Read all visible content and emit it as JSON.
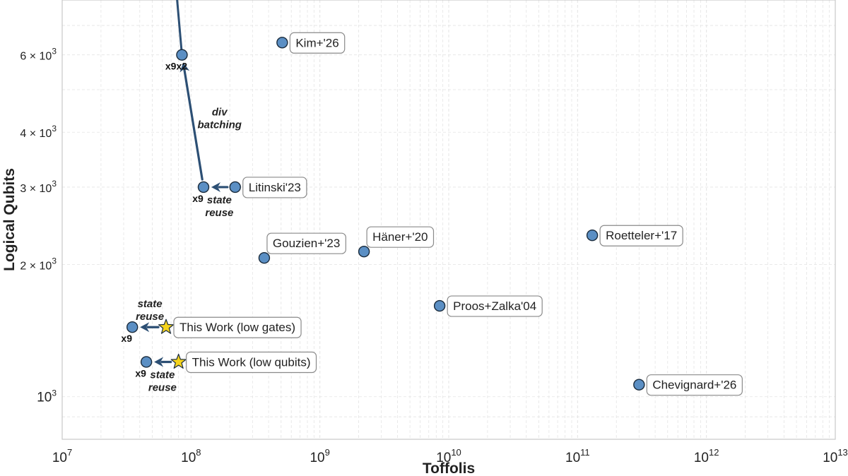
{
  "chart_data": {
    "type": "scatter",
    "xlabel": "Toffolis",
    "ylabel": "Logical Qubits",
    "xscale": "log",
    "yscale": "log",
    "xlim": [
      10000000,
      10000000000000
    ],
    "ylim": [
      800,
      8000
    ],
    "grid": true,
    "x_ticks": [
      {
        "value": 10000000,
        "base": "10",
        "exp": "7"
      },
      {
        "value": 100000000,
        "base": "10",
        "exp": "8"
      },
      {
        "value": 1000000000,
        "base": "10",
        "exp": "9"
      },
      {
        "value": 10000000000,
        "base": "10",
        "exp": "10"
      },
      {
        "value": 100000000000,
        "base": "10",
        "exp": "11"
      },
      {
        "value": 1000000000000,
        "base": "10",
        "exp": "12"
      },
      {
        "value": 10000000000000,
        "base": "10",
        "exp": "13"
      }
    ],
    "y_ticks": [
      {
        "value": 1000,
        "mant": "",
        "base": "10",
        "exp": "3"
      },
      {
        "value": 2000,
        "mant": "2 × ",
        "base": "10",
        "exp": "3"
      },
      {
        "value": 3000,
        "mant": "3 × ",
        "base": "10",
        "exp": "3"
      },
      {
        "value": 4000,
        "mant": "4 × ",
        "base": "10",
        "exp": "3"
      },
      {
        "value": 6000,
        "mant": "6 × ",
        "base": "10",
        "exp": "3"
      }
    ],
    "points": [
      {
        "name": "Kim+'26",
        "x": 510000000,
        "y": 6400,
        "label": "Kim+'26",
        "label_pos": "right"
      },
      {
        "name": "Litinski'23",
        "x": 220000000,
        "y": 3000,
        "label": "Litinski'23",
        "label_pos": "right"
      },
      {
        "name": "Gouzien+'23",
        "x": 370000000,
        "y": 2070,
        "label": "Gouzien+'23",
        "label_pos": "above-right"
      },
      {
        "name": "Häner+'20",
        "x": 2200000000,
        "y": 2140,
        "label": "Häner+'20",
        "label_pos": "above-right"
      },
      {
        "name": "Roetteler+'17",
        "x": 130000000000,
        "y": 2330,
        "label": "Roetteler+'17",
        "label_pos": "right"
      },
      {
        "name": "Proos+Zalka'04",
        "x": 8500000000,
        "y": 1610,
        "label": "Proos+Zalka'04",
        "label_pos": "right"
      },
      {
        "name": "Chevignard+'26",
        "x": 300000000000,
        "y": 1065,
        "label": "Chevignard+'26",
        "label_pos": "right"
      },
      {
        "name": "Litinski x9",
        "x": 125000000,
        "y": 3000,
        "label": "x9",
        "label_pos": "below-left"
      },
      {
        "name": "Litinski x9x2",
        "x": 85000000,
        "y": 6000,
        "label": "x9x2",
        "label_pos": "below-left"
      },
      {
        "name": "low gates x9",
        "x": 35000000,
        "y": 1440,
        "label": "x9",
        "label_pos": "below-left"
      },
      {
        "name": "low qubits x9",
        "x": 45000000,
        "y": 1200,
        "label": "x9",
        "label_pos": "below-left"
      }
    ],
    "stars": [
      {
        "name": "This Work (low gates)",
        "x": 64000000,
        "y": 1440,
        "label": "This Work (low gates)"
      },
      {
        "name": "This Work (low qubits)",
        "x": 80000000,
        "y": 1200,
        "label": "This Work (low qubits)"
      }
    ],
    "arrows": [
      {
        "name": "litinski-state-reuse",
        "from": [
          220000000,
          3000
        ],
        "to": [
          125000000,
          3000
        ],
        "label": [
          "state",
          "reuse"
        ],
        "label_pos": "below"
      },
      {
        "name": "div-batching",
        "from": [
          125000000,
          3000
        ],
        "to": [
          85000000,
          6000
        ],
        "label": [
          "div",
          "batching"
        ],
        "label_pos": "right"
      },
      {
        "name": "low-gates-state-reuse",
        "from": [
          64000000,
          1440
        ],
        "to": [
          35000000,
          1440
        ],
        "label": [
          "state",
          "reuse"
        ],
        "label_pos": "above"
      },
      {
        "name": "low-qubits-state-reuse",
        "from": [
          80000000,
          1200
        ],
        "to": [
          45000000,
          1200
        ],
        "label": [
          "state",
          "reuse"
        ],
        "label_pos": "below"
      }
    ],
    "off_chart_line": {
      "from": [
        85000000,
        6000
      ],
      "to": [
        78000000,
        8000
      ]
    },
    "colors": {
      "point_fill": "#5b8fc4",
      "point_edge": "#1a2b3c",
      "star_fill": "#f5d31c",
      "arrow": "#2c4f74",
      "grid": "#e4e4e4",
      "frame": "#c8c8c8"
    }
  }
}
